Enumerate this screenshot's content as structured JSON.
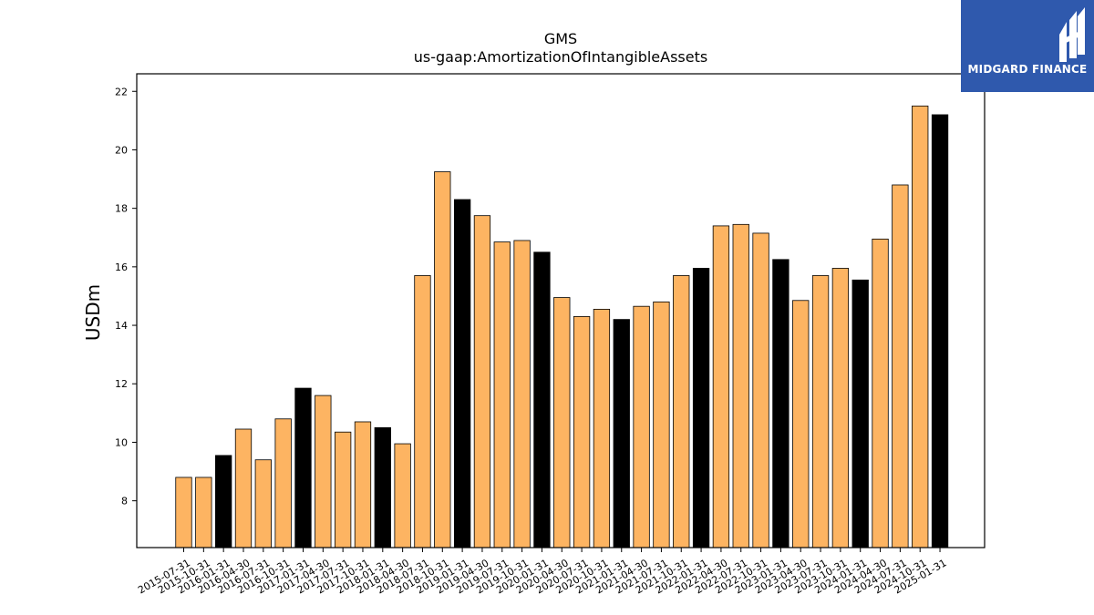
{
  "brand": {
    "name": "MIDGARD FINANCE",
    "bg_color": "#2f59ad"
  },
  "chart_data": {
    "type": "bar",
    "title": "GMS",
    "subtitle": "us-gaap:AmortizationOfIntangibleAssets",
    "xlabel": "",
    "ylabel": "USDm",
    "ylim": [
      6.4,
      22.6
    ],
    "yticks": [
      8,
      10,
      12,
      14,
      16,
      18,
      20,
      22
    ],
    "grid": false,
    "colors": {
      "quarterly": "#fdb462",
      "annual": "#000000",
      "edge": "#000000"
    },
    "categories": [
      "2015-07-31",
      "2015-10-31",
      "2016-01-31",
      "2016-04-30",
      "2016-07-31",
      "2016-10-31",
      "2017-01-31",
      "2017-04-30",
      "2017-07-31",
      "2017-10-31",
      "2018-01-31",
      "2018-04-30",
      "2018-07-31",
      "2018-10-31",
      "2019-01-31",
      "2019-04-30",
      "2019-07-31",
      "2019-10-31",
      "2020-01-31",
      "2020-04-30",
      "2020-07-31",
      "2020-10-31",
      "2021-01-31",
      "2021-04-30",
      "2021-07-31",
      "2021-10-31",
      "2022-01-31",
      "2022-04-30",
      "2022-07-31",
      "2022-10-31",
      "2023-01-31",
      "2023-04-30",
      "2023-07-31",
      "2023-10-31",
      "2024-01-31",
      "2024-04-30",
      "2024-07-31",
      "2024-10-31",
      "2025-01-31"
    ],
    "values": [
      8.8,
      8.8,
      9.55,
      10.45,
      9.4,
      10.8,
      11.85,
      11.6,
      10.35,
      10.7,
      10.5,
      9.95,
      15.7,
      19.25,
      18.3,
      17.75,
      16.85,
      16.9,
      16.5,
      14.95,
      14.3,
      14.55,
      14.2,
      14.65,
      14.8,
      15.7,
      15.95,
      17.4,
      17.45,
      17.15,
      16.25,
      14.85,
      15.7,
      15.95,
      15.55,
      16.95,
      18.8,
      21.5,
      21.2
    ],
    "annual_flags": [
      false,
      false,
      true,
      false,
      false,
      false,
      true,
      false,
      false,
      false,
      true,
      false,
      false,
      false,
      true,
      false,
      false,
      false,
      true,
      false,
      false,
      false,
      true,
      false,
      false,
      false,
      true,
      false,
      false,
      false,
      true,
      false,
      false,
      false,
      true,
      false,
      false,
      false,
      true
    ]
  }
}
